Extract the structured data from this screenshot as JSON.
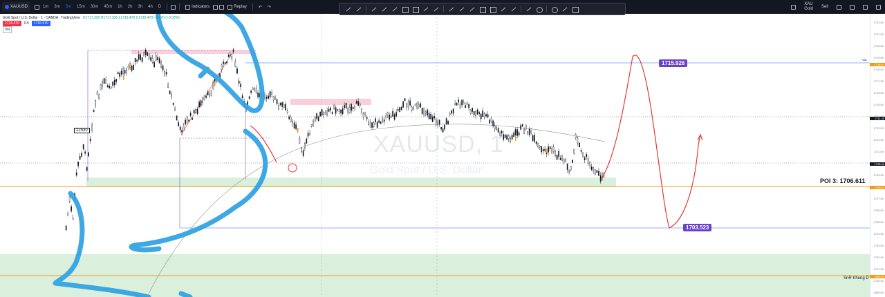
{
  "toolbar": {
    "symbol": "XAUUSD",
    "timeframes": [
      "1m",
      "3m",
      "5m",
      "15m",
      "30m",
      "45m",
      "1h",
      "2h",
      "3h",
      "4h",
      "D"
    ],
    "indicators_label": "Indicators",
    "replay_label": "Replay",
    "right_label_1": "XAU",
    "right_label_2": "Gold",
    "right_label_3": "Sell"
  },
  "legend": {
    "title": "Gold Spot / U.S. Dollar · 1 · OANDA · TradingView",
    "ohlc": "O1717.320 H1717.330 L1716.470 C1716.470 −0.470 (−0.03%)",
    "sell_price": "1716.470",
    "spread": "0.5",
    "buy_price": "1716.970",
    "indicator": "Vol"
  },
  "chart": {
    "watermark_symbol": "XAUUSD, 1",
    "watermark_desc": "Gold Spot / U.S. Dollar",
    "time_marker": "22h30",
    "label_1715": "1715.926",
    "label_1703": "1703.523",
    "poi_label": "POI 3: 1706.611",
    "snr_label": "SnR Khung D",
    "val_label": "VAL",
    "colors": {
      "bg": "#ffffff",
      "up": "#131722",
      "down": "#131722",
      "zone_pink": "#f8c8d4",
      "zone_green": "#d6eed8",
      "orange_line": "#f39c12",
      "blue_line": "#2962ff",
      "purple_line": "#7e57c2",
      "annot_blue": "#33a3e3",
      "annot_red": "#e53935",
      "badge": "#6a42c8"
    }
  },
  "price_scale": {
    "ticks": [
      "1722.00",
      "1721.00",
      "1720.00",
      "1719.00",
      "1718.00",
      "1717.00",
      "1716.00",
      "1715.00",
      "1714.00",
      "1713.00",
      "1712.00",
      "1711.00",
      "1710.00",
      "1709.00",
      "1708.00",
      "1707.00",
      "1706.00",
      "1705.00",
      "1704.00",
      "1703.00",
      "1702.00",
      "1701.00",
      "1700.00",
      "1699.00"
    ],
    "current_price": "1716.47",
    "dotted_price": "1711.20",
    "price_a": "1708.40",
    "price_b": "1706.61",
    "price_c": "1699.51"
  }
}
